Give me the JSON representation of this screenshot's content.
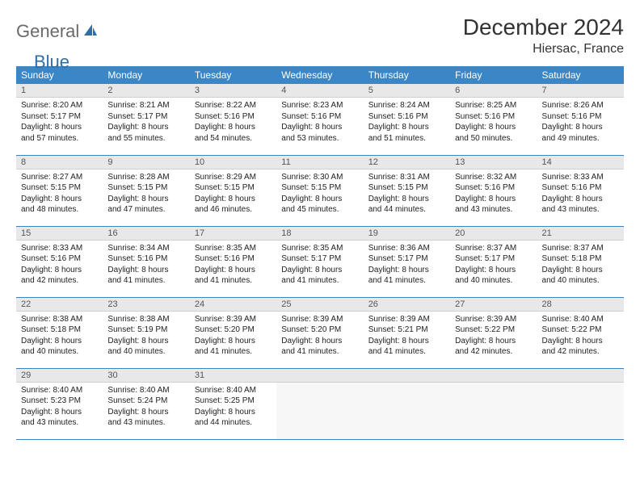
{
  "logo": {
    "text1": "General",
    "text2": "Blue"
  },
  "title": "December 2024",
  "location": "Hiersac, France",
  "colors": {
    "header_bg": "#3b86c6",
    "header_text": "#ffffff",
    "daynum_bg": "#e8e8e8",
    "border": "#3b86c6",
    "logo_gray": "#6a6a6a",
    "logo_blue": "#2f6fa8"
  },
  "weekdays": [
    "Sunday",
    "Monday",
    "Tuesday",
    "Wednesday",
    "Thursday",
    "Friday",
    "Saturday"
  ],
  "weeks": [
    [
      {
        "d": "1",
        "sr": "Sunrise: 8:20 AM",
        "ss": "Sunset: 5:17 PM",
        "dl1": "Daylight: 8 hours",
        "dl2": "and 57 minutes."
      },
      {
        "d": "2",
        "sr": "Sunrise: 8:21 AM",
        "ss": "Sunset: 5:17 PM",
        "dl1": "Daylight: 8 hours",
        "dl2": "and 55 minutes."
      },
      {
        "d": "3",
        "sr": "Sunrise: 8:22 AM",
        "ss": "Sunset: 5:16 PM",
        "dl1": "Daylight: 8 hours",
        "dl2": "and 54 minutes."
      },
      {
        "d": "4",
        "sr": "Sunrise: 8:23 AM",
        "ss": "Sunset: 5:16 PM",
        "dl1": "Daylight: 8 hours",
        "dl2": "and 53 minutes."
      },
      {
        "d": "5",
        "sr": "Sunrise: 8:24 AM",
        "ss": "Sunset: 5:16 PM",
        "dl1": "Daylight: 8 hours",
        "dl2": "and 51 minutes."
      },
      {
        "d": "6",
        "sr": "Sunrise: 8:25 AM",
        "ss": "Sunset: 5:16 PM",
        "dl1": "Daylight: 8 hours",
        "dl2": "and 50 minutes."
      },
      {
        "d": "7",
        "sr": "Sunrise: 8:26 AM",
        "ss": "Sunset: 5:16 PM",
        "dl1": "Daylight: 8 hours",
        "dl2": "and 49 minutes."
      }
    ],
    [
      {
        "d": "8",
        "sr": "Sunrise: 8:27 AM",
        "ss": "Sunset: 5:15 PM",
        "dl1": "Daylight: 8 hours",
        "dl2": "and 48 minutes."
      },
      {
        "d": "9",
        "sr": "Sunrise: 8:28 AM",
        "ss": "Sunset: 5:15 PM",
        "dl1": "Daylight: 8 hours",
        "dl2": "and 47 minutes."
      },
      {
        "d": "10",
        "sr": "Sunrise: 8:29 AM",
        "ss": "Sunset: 5:15 PM",
        "dl1": "Daylight: 8 hours",
        "dl2": "and 46 minutes."
      },
      {
        "d": "11",
        "sr": "Sunrise: 8:30 AM",
        "ss": "Sunset: 5:15 PM",
        "dl1": "Daylight: 8 hours",
        "dl2": "and 45 minutes."
      },
      {
        "d": "12",
        "sr": "Sunrise: 8:31 AM",
        "ss": "Sunset: 5:15 PM",
        "dl1": "Daylight: 8 hours",
        "dl2": "and 44 minutes."
      },
      {
        "d": "13",
        "sr": "Sunrise: 8:32 AM",
        "ss": "Sunset: 5:16 PM",
        "dl1": "Daylight: 8 hours",
        "dl2": "and 43 minutes."
      },
      {
        "d": "14",
        "sr": "Sunrise: 8:33 AM",
        "ss": "Sunset: 5:16 PM",
        "dl1": "Daylight: 8 hours",
        "dl2": "and 43 minutes."
      }
    ],
    [
      {
        "d": "15",
        "sr": "Sunrise: 8:33 AM",
        "ss": "Sunset: 5:16 PM",
        "dl1": "Daylight: 8 hours",
        "dl2": "and 42 minutes."
      },
      {
        "d": "16",
        "sr": "Sunrise: 8:34 AM",
        "ss": "Sunset: 5:16 PM",
        "dl1": "Daylight: 8 hours",
        "dl2": "and 41 minutes."
      },
      {
        "d": "17",
        "sr": "Sunrise: 8:35 AM",
        "ss": "Sunset: 5:16 PM",
        "dl1": "Daylight: 8 hours",
        "dl2": "and 41 minutes."
      },
      {
        "d": "18",
        "sr": "Sunrise: 8:35 AM",
        "ss": "Sunset: 5:17 PM",
        "dl1": "Daylight: 8 hours",
        "dl2": "and 41 minutes."
      },
      {
        "d": "19",
        "sr": "Sunrise: 8:36 AM",
        "ss": "Sunset: 5:17 PM",
        "dl1": "Daylight: 8 hours",
        "dl2": "and 41 minutes."
      },
      {
        "d": "20",
        "sr": "Sunrise: 8:37 AM",
        "ss": "Sunset: 5:17 PM",
        "dl1": "Daylight: 8 hours",
        "dl2": "and 40 minutes."
      },
      {
        "d": "21",
        "sr": "Sunrise: 8:37 AM",
        "ss": "Sunset: 5:18 PM",
        "dl1": "Daylight: 8 hours",
        "dl2": "and 40 minutes."
      }
    ],
    [
      {
        "d": "22",
        "sr": "Sunrise: 8:38 AM",
        "ss": "Sunset: 5:18 PM",
        "dl1": "Daylight: 8 hours",
        "dl2": "and 40 minutes."
      },
      {
        "d": "23",
        "sr": "Sunrise: 8:38 AM",
        "ss": "Sunset: 5:19 PM",
        "dl1": "Daylight: 8 hours",
        "dl2": "and 40 minutes."
      },
      {
        "d": "24",
        "sr": "Sunrise: 8:39 AM",
        "ss": "Sunset: 5:20 PM",
        "dl1": "Daylight: 8 hours",
        "dl2": "and 41 minutes."
      },
      {
        "d": "25",
        "sr": "Sunrise: 8:39 AM",
        "ss": "Sunset: 5:20 PM",
        "dl1": "Daylight: 8 hours",
        "dl2": "and 41 minutes."
      },
      {
        "d": "26",
        "sr": "Sunrise: 8:39 AM",
        "ss": "Sunset: 5:21 PM",
        "dl1": "Daylight: 8 hours",
        "dl2": "and 41 minutes."
      },
      {
        "d": "27",
        "sr": "Sunrise: 8:39 AM",
        "ss": "Sunset: 5:22 PM",
        "dl1": "Daylight: 8 hours",
        "dl2": "and 42 minutes."
      },
      {
        "d": "28",
        "sr": "Sunrise: 8:40 AM",
        "ss": "Sunset: 5:22 PM",
        "dl1": "Daylight: 8 hours",
        "dl2": "and 42 minutes."
      }
    ],
    [
      {
        "d": "29",
        "sr": "Sunrise: 8:40 AM",
        "ss": "Sunset: 5:23 PM",
        "dl1": "Daylight: 8 hours",
        "dl2": "and 43 minutes."
      },
      {
        "d": "30",
        "sr": "Sunrise: 8:40 AM",
        "ss": "Sunset: 5:24 PM",
        "dl1": "Daylight: 8 hours",
        "dl2": "and 43 minutes."
      },
      {
        "d": "31",
        "sr": "Sunrise: 8:40 AM",
        "ss": "Sunset: 5:25 PM",
        "dl1": "Daylight: 8 hours",
        "dl2": "and 44 minutes."
      },
      null,
      null,
      null,
      null
    ]
  ]
}
